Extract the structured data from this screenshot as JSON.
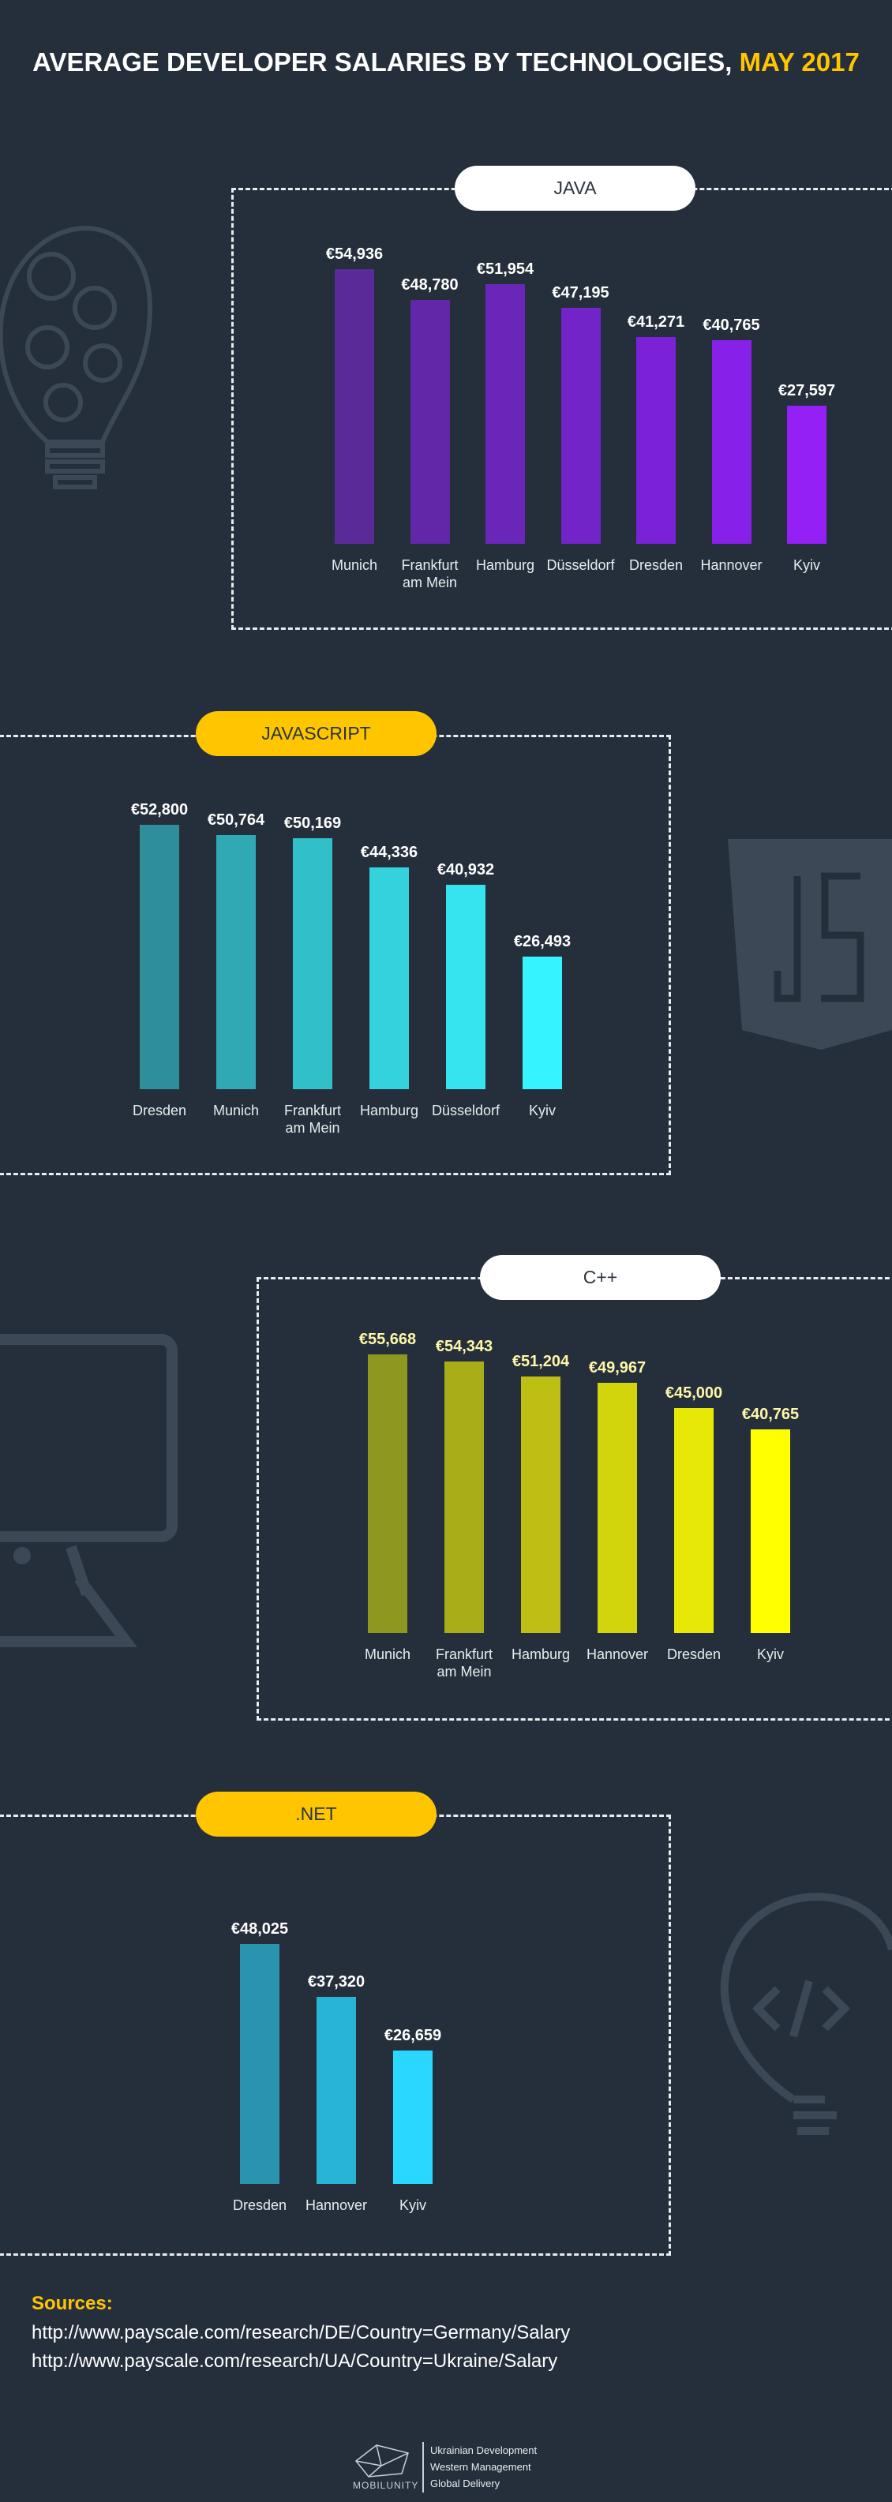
{
  "title": "AVERAGE DEVELOPER SALARIES BY TECHNOLOGIES, ",
  "title_highlight": "MAY 2017",
  "chart_data": [
    {
      "type": "bar",
      "title": "JAVA",
      "badge_color": "#ffffff",
      "categories": [
        "Munich",
        "Frankfurt am Mein",
        "Hamburg",
        "Düsseldorf",
        "Dresden",
        "Hannover",
        "Kyiv"
      ],
      "values": [
        54936,
        48780,
        51954,
        47195,
        41271,
        40765,
        27597
      ],
      "value_labels": [
        "€54,936",
        "€48,780",
        "€51,954",
        "€47,195",
        "€41,271",
        "€40,765",
        "€27,597"
      ],
      "colors": [
        "#5a2a98",
        "#6127a8",
        "#6a26b8",
        "#7224c8",
        "#7b22d8",
        "#8720e8",
        "#9420f6"
      ],
      "label_color": "#ffffff"
    },
    {
      "type": "bar",
      "title": "JAVASCRIPT",
      "badge_color": "#ffc600",
      "categories": [
        "Dresden",
        "Munich",
        "Frankfurt am Mein",
        "Hamburg",
        "Düsseldorf",
        "Kyiv"
      ],
      "values": [
        52800,
        50764,
        50169,
        44336,
        40932,
        26493
      ],
      "value_labels": [
        "€52,800",
        "€50,764",
        "€50,169",
        "€44,336",
        "€40,932",
        "€26,493"
      ],
      "colors": [
        "#2e8e9a",
        "#30a9b4",
        "#31c0ca",
        "#33d2dc",
        "#35e4ee",
        "#36f4ff"
      ],
      "label_color": "#ffffff"
    },
    {
      "type": "bar",
      "title": "C++",
      "badge_color": "#ffffff",
      "categories": [
        "Munich",
        "Frankfurt am Mein",
        "Hamburg",
        "Hannover",
        "Dresden",
        "Kyiv"
      ],
      "values": [
        55668,
        54343,
        51204,
        49967,
        45000,
        40765
      ],
      "value_labels": [
        "€55,668",
        "€54,343",
        "€51,204",
        "€49,967",
        "€45,000",
        "€40,765"
      ],
      "colors": [
        "#8e981f",
        "#a8ad18",
        "#bdbf12",
        "#d2d40c",
        "#e8e806",
        "#ffff00"
      ],
      "label_color": "#fff7a8"
    },
    {
      "type": "bar",
      "title": ".NET",
      "badge_color": "#ffc600",
      "categories": [
        "Dresden",
        "Hannover",
        "Kyiv"
      ],
      "values": [
        48025,
        37320,
        26659
      ],
      "value_labels": [
        "€48,025",
        "€37,320",
        "€26,659"
      ],
      "colors": [
        "#2a93ad",
        "#28b4d6",
        "#2ad8ff"
      ],
      "label_color": "#ffffff"
    }
  ],
  "sources": {
    "heading": "Sources:",
    "links": [
      "http://www.payscale.com/research/DE/Country=Germany/Salary",
      "http://www.payscale.com/research/UA/Country=Ukraine/Salary"
    ]
  },
  "footer": {
    "brand": "MOBILUNITY",
    "lines": [
      "Ukrainian Development",
      "Western Management",
      "Global Delivery"
    ]
  }
}
